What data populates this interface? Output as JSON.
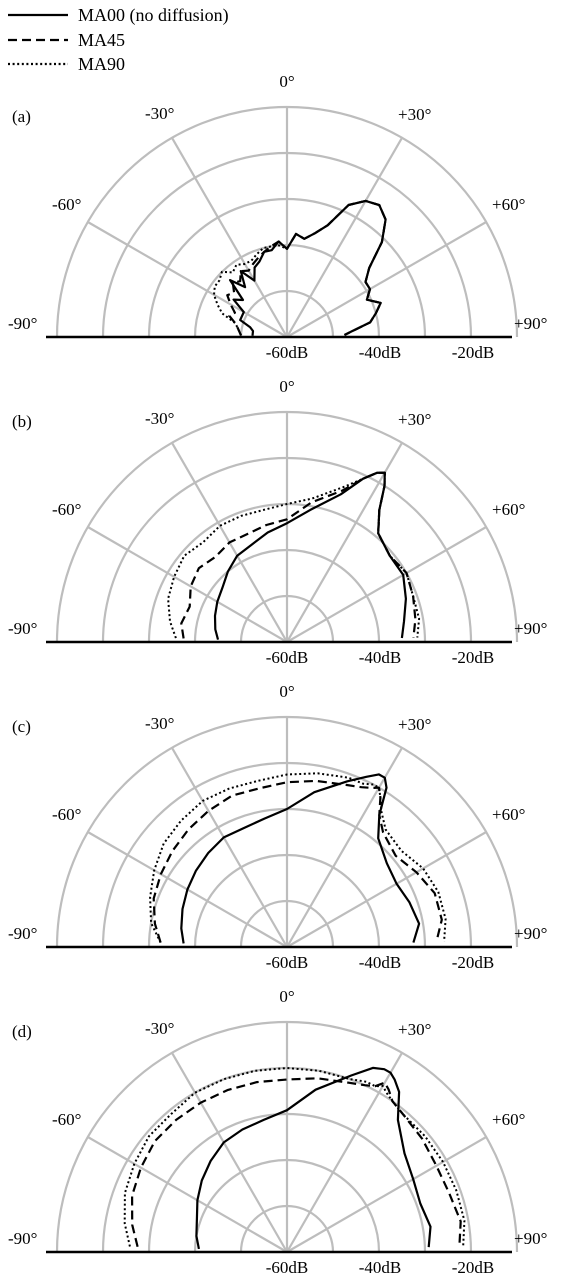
{
  "legend": [
    {
      "name": "MA00 (no diffusion)",
      "style": "solid"
    },
    {
      "name": "MA45",
      "style": "dashed"
    },
    {
      "name": "MA90",
      "style": "dotted"
    }
  ],
  "colors": {
    "grid": "#bdbdbd",
    "curves": "#000000",
    "baseline": "#000000"
  },
  "chart_data": [
    {
      "panel_label": "(a)",
      "type": "line",
      "coordinate_system": "polar-half",
      "angle_ticks": [
        "-90°",
        "-60°",
        "-30°",
        "0°",
        "+30°",
        "+60°",
        "+90°"
      ],
      "radial_ticks": [
        "-60dB",
        "-40dB",
        "-20dB"
      ],
      "rlim_dB": [
        -75,
        -15
      ],
      "series": [
        {
          "name": "MA00 (no diffusion)",
          "style": "solid",
          "angles": [
            -88,
            -80,
            -75,
            -70,
            -60,
            -55,
            -50,
            -45,
            -40,
            -35,
            -30,
            -25,
            -20,
            -15,
            -10,
            -5,
            0,
            5,
            10,
            15,
            20,
            25,
            30,
            35,
            40,
            45,
            50,
            55,
            60,
            65,
            70,
            75,
            80,
            85,
            88
          ],
          "values": [
            -66,
            -66,
            -65,
            -62,
            -62,
            -58,
            -60,
            -54,
            -58,
            -54,
            -58,
            -55,
            -54,
            -52,
            -52,
            -50,
            -52,
            -48,
            -49,
            -47,
            -44,
            -37,
            -34,
            -33,
            -35,
            -40,
            -47,
            -50,
            -50,
            -52,
            -49,
            -51,
            -53,
            -58,
            -60
          ]
        },
        {
          "name": "MA45",
          "style": "dashed",
          "angles": [
            -88,
            -80,
            -75,
            -70,
            -65,
            -60,
            -55,
            -50,
            -45,
            -40,
            -35,
            -30,
            -25,
            -20,
            -15,
            -10,
            -5,
            0,
            5,
            10,
            15,
            20,
            25,
            30,
            35,
            40,
            45,
            50,
            55,
            60,
            65,
            70,
            75,
            80,
            85,
            88
          ],
          "values": [
            -63,
            -62,
            -61,
            -59,
            -60,
            -58,
            -56,
            -57,
            -55,
            -56,
            -54,
            -55,
            -54,
            -53,
            -52,
            -51,
            -50,
            -52,
            -48,
            -49,
            -47,
            -44,
            -37,
            -34,
            -33,
            -35,
            -40,
            -47,
            -50,
            -50,
            -52,
            -49,
            -51,
            -53,
            -58,
            -60
          ]
        },
        {
          "name": "MA90",
          "style": "dotted",
          "angles": [
            -88,
            -80,
            -75,
            -70,
            -65,
            -60,
            -55,
            -50,
            -45,
            -40,
            -35,
            -30,
            -25,
            -20,
            -15,
            -10,
            -5,
            0,
            5,
            10,
            15,
            20,
            25,
            30,
            35,
            40,
            45,
            50,
            55,
            60,
            65,
            70,
            75,
            80,
            85,
            88
          ],
          "values": [
            -63,
            -62,
            -61,
            -57,
            -55,
            -53,
            -52,
            -52,
            -51,
            -53,
            -52,
            -53,
            -53,
            -52,
            -51,
            -51,
            -51,
            -52,
            -48,
            -49,
            -47,
            -44,
            -37,
            -34,
            -33,
            -35,
            -40,
            -47,
            -50,
            -50,
            -52,
            -49,
            -51,
            -53,
            -58,
            -60
          ]
        }
      ]
    },
    {
      "panel_label": "(b)",
      "type": "line",
      "coordinate_system": "polar-half",
      "angle_ticks": [
        "-90°",
        "-60°",
        "-30°",
        "0°",
        "+30°",
        "+60°",
        "+90°"
      ],
      "radial_ticks": [
        "-60dB",
        "-40dB",
        "-20dB"
      ],
      "rlim_dB": [
        -75,
        -15
      ],
      "series": [
        {
          "name": "MA00 (no diffusion)",
          "style": "solid",
          "angles": [
            -88,
            -80,
            -70,
            -60,
            -50,
            -40,
            -30,
            -20,
            -10,
            0,
            10,
            20,
            25,
            28,
            30,
            32,
            35,
            40,
            50,
            60,
            70,
            80,
            88
          ],
          "values": [
            -57,
            -56,
            -55,
            -54,
            -53,
            -51,
            -49,
            -48,
            -46,
            -44,
            -40,
            -34,
            -28,
            -25,
            -24,
            -27,
            -33,
            -38,
            -40,
            -40,
            -42,
            -44,
            -45
          ]
        },
        {
          "name": "MA45",
          "style": "dashed",
          "angles": [
            -88,
            -80,
            -70,
            -60,
            -50,
            -40,
            -30,
            -20,
            -10,
            0,
            10,
            20,
            25,
            28,
            30,
            32,
            35,
            40,
            50,
            60,
            70,
            80,
            88
          ],
          "values": [
            -48,
            -47,
            -48,
            -46,
            -45,
            -46,
            -45,
            -45,
            -44,
            -43,
            -38,
            -33,
            -28,
            -25,
            -24,
            -27,
            -33,
            -38,
            -40,
            -39,
            -40,
            -41,
            -42
          ]
        },
        {
          "name": "MA90",
          "style": "dotted",
          "angles": [
            -88,
            -80,
            -70,
            -60,
            -50,
            -40,
            -30,
            -20,
            -10,
            0,
            10,
            20,
            25,
            28,
            30,
            32,
            35,
            40,
            50,
            60,
            70,
            80,
            88
          ],
          "values": [
            -46,
            -44,
            -42,
            -41,
            -40,
            -41,
            -40,
            -40,
            -40,
            -39,
            -37,
            -32,
            -28,
            -25,
            -24,
            -27,
            -33,
            -38,
            -40,
            -39,
            -40,
            -40,
            -41
          ]
        }
      ]
    },
    {
      "panel_label": "(c)",
      "type": "line",
      "coordinate_system": "polar-half",
      "angle_ticks": [
        "-90°",
        "-60°",
        "-30°",
        "0°",
        "+30°",
        "+60°",
        "+90°"
      ],
      "radial_ticks": [
        "-60dB",
        "-40dB",
        "-20dB"
      ],
      "rlim_dB": [
        -75,
        -15
      ],
      "series": [
        {
          "name": "MA00 (no diffusion)",
          "style": "solid",
          "angles": [
            -88,
            -80,
            -70,
            -60,
            -50,
            -40,
            -30,
            -20,
            -10,
            0,
            10,
            20,
            25,
            28,
            30,
            32,
            35,
            40,
            50,
            60,
            70,
            80,
            88
          ],
          "values": [
            -48,
            -47,
            -46,
            -45,
            -44,
            -43,
            -42,
            -42,
            -41,
            -39,
            -34,
            -29,
            -26,
            -24,
            -24,
            -26,
            -33,
            -38,
            -41,
            -42,
            -41,
            -40,
            -42
          ]
        },
        {
          "name": "MA45",
          "style": "dashed",
          "angles": [
            -88,
            -80,
            -70,
            -60,
            -50,
            -40,
            -30,
            -20,
            -10,
            0,
            10,
            20,
            25,
            28,
            30,
            32,
            35,
            40,
            50,
            60,
            70,
            80,
            88
          ],
          "values": [
            -42,
            -40,
            -38,
            -37,
            -36,
            -35,
            -34,
            -33,
            -33,
            -32,
            -31,
            -30,
            -29,
            -28,
            -27,
            -29,
            -33,
            -36,
            -38,
            -36,
            -34,
            -34,
            -36
          ]
        },
        {
          "name": "MA90",
          "style": "dotted",
          "angles": [
            -88,
            -80,
            -70,
            -60,
            -50,
            -40,
            -30,
            -20,
            -10,
            0,
            10,
            20,
            25,
            28,
            30,
            32,
            35,
            40,
            50,
            60,
            70,
            80,
            88
          ],
          "values": [
            -42,
            -39,
            -37,
            -35,
            -33,
            -32,
            -31,
            -31,
            -31,
            -30,
            -29,
            -28,
            -28,
            -27,
            -27,
            -29,
            -32,
            -35,
            -36,
            -34,
            -33,
            -33,
            -34
          ]
        }
      ]
    },
    {
      "panel_label": "(d)",
      "type": "line",
      "coordinate_system": "polar-half",
      "angle_ticks": [
        "-90°",
        "-60°",
        "-30°",
        "0°",
        "+30°",
        "+60°",
        "+90°"
      ],
      "radial_ticks": [
        "-60dB",
        "-40dB",
        "-20dB"
      ],
      "rlim_dB": [
        -75,
        -15
      ],
      "series": [
        {
          "name": "MA00 (no diffusion)",
          "style": "solid",
          "angles": [
            -88,
            -80,
            -70,
            -60,
            -50,
            -40,
            -30,
            -20,
            -10,
            0,
            10,
            20,
            25,
            28,
            30,
            32,
            35,
            40,
            50,
            60,
            70,
            80,
            88
          ],
          "values": [
            -52,
            -51,
            -50,
            -48,
            -46,
            -44,
            -42,
            -41,
            -40,
            -38,
            -32,
            -26,
            -22,
            -21,
            -21,
            -22,
            -24,
            -30,
            -35,
            -37,
            -38,
            -37,
            -38
          ]
        },
        {
          "name": "MA45",
          "style": "dashed",
          "angles": [
            -88,
            -80,
            -70,
            -60,
            -50,
            -40,
            -30,
            -20,
            -10,
            0,
            10,
            20,
            25,
            28,
            30,
            32,
            35,
            40,
            50,
            60,
            70,
            80,
            88
          ],
          "values": [
            -36,
            -34,
            -32,
            -31,
            -30,
            -30,
            -30,
            -30,
            -30,
            -30,
            -29,
            -28,
            -27,
            -26,
            -24,
            -25,
            -27,
            -28,
            -29,
            -30,
            -30,
            -29,
            -30
          ]
        },
        {
          "name": "MA90",
          "style": "dotted",
          "angles": [
            -88,
            -80,
            -70,
            -60,
            -50,
            -40,
            -30,
            -20,
            -10,
            0,
            10,
            20,
            25,
            28,
            30,
            32,
            35,
            40,
            50,
            60,
            70,
            80,
            88
          ],
          "values": [
            -34,
            -32,
            -30,
            -29,
            -28,
            -28,
            -27,
            -27,
            -27,
            -27,
            -27,
            -27,
            -26,
            -26,
            -25,
            -26,
            -27,
            -28,
            -28,
            -28,
            -28,
            -28,
            -29
          ]
        }
      ]
    }
  ]
}
